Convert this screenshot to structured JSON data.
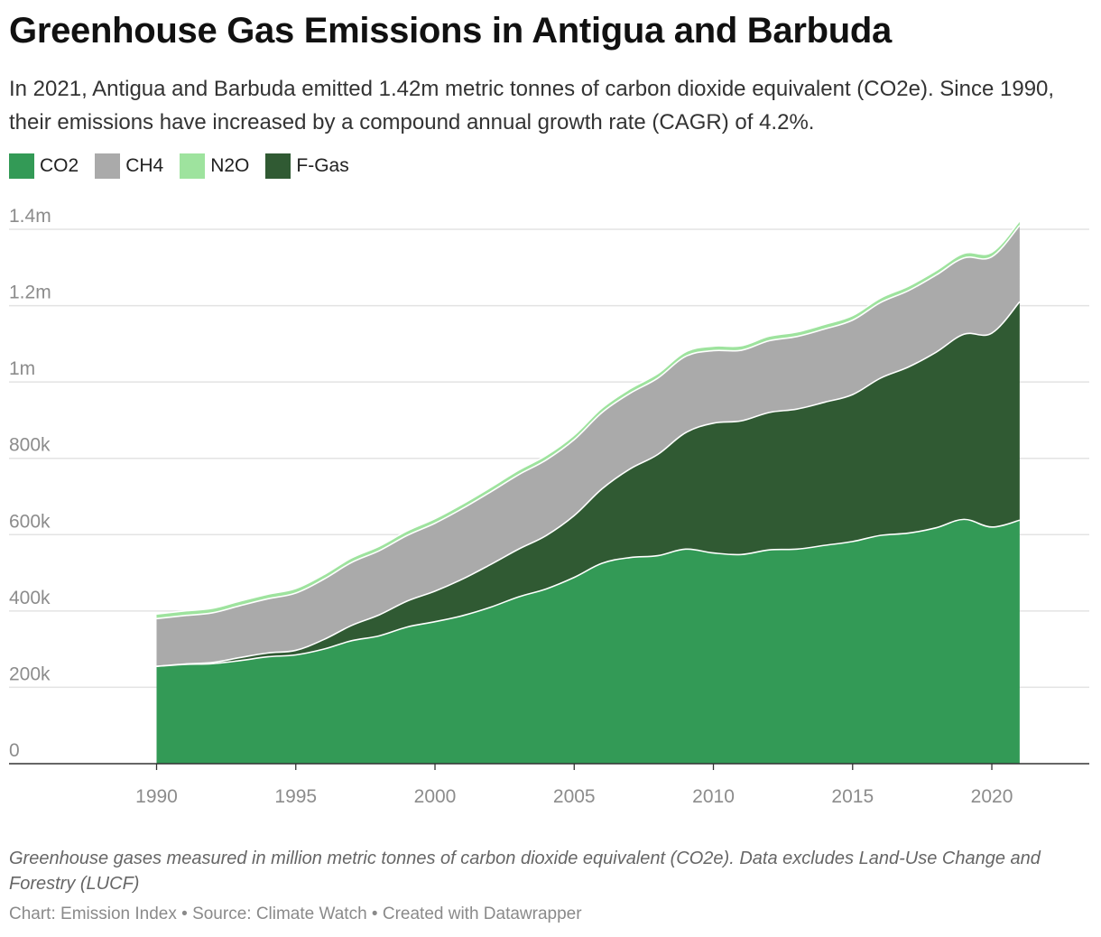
{
  "chart_data": {
    "type": "area",
    "stacked": true,
    "title": "Greenhouse Gas Emissions in Antigua and Barbuda",
    "subtitle": "In 2021, Antigua and Barbuda emitted 1.42m metric tonnes of carbon dioxide equivalent (CO2e). Since 1990, their emissions have increased by a compound annual growth rate (CAGR) of 4.2%.",
    "x": [
      1990,
      1991,
      1992,
      1993,
      1994,
      1995,
      1996,
      1997,
      1998,
      1999,
      2000,
      2001,
      2002,
      2003,
      2004,
      2005,
      2006,
      2007,
      2008,
      2009,
      2010,
      2011,
      2012,
      2013,
      2014,
      2015,
      2016,
      2017,
      2018,
      2019,
      2020,
      2021
    ],
    "series": [
      {
        "name": "CO2",
        "color": "#339a56",
        "values": [
          255000,
          260000,
          262000,
          270000,
          280000,
          285000,
          300000,
          322000,
          335000,
          358000,
          372000,
          388000,
          410000,
          437000,
          458000,
          488000,
          525000,
          540000,
          545000,
          562000,
          552000,
          548000,
          560000,
          562000,
          572000,
          582000,
          598000,
          604000,
          618000,
          640000,
          620000,
          638000
        ]
      },
      {
        "name": "F-Gas",
        "color": "#305a33",
        "values": [
          0,
          1000,
          3000,
          8000,
          10000,
          12000,
          25000,
          40000,
          55000,
          68000,
          80000,
          96000,
          112000,
          125000,
          140000,
          162000,
          195000,
          232000,
          265000,
          305000,
          340000,
          350000,
          360000,
          367000,
          375000,
          385000,
          412000,
          435000,
          460000,
          485000,
          508000,
          572000
        ]
      },
      {
        "name": "CH4",
        "color": "#aaaaaa",
        "values": [
          125000,
          127000,
          130000,
          136000,
          142000,
          150000,
          158000,
          165000,
          168000,
          172000,
          178000,
          185000,
          190000,
          195000,
          198000,
          199000,
          200000,
          198000,
          200000,
          200000,
          190000,
          185000,
          188000,
          190000,
          192000,
          195000,
          198000,
          200000,
          202000,
          200000,
          200000,
          200000
        ]
      },
      {
        "name": "N2O",
        "color": "#9ee39e",
        "values": [
          12000,
          12000,
          12000,
          12000,
          12000,
          12000,
          12000,
          12000,
          12000,
          12000,
          12000,
          12000,
          12000,
          12000,
          12000,
          12000,
          12000,
          12000,
          12000,
          12000,
          12000,
          12000,
          12000,
          12000,
          12000,
          12000,
          12000,
          12000,
          12000,
          12000,
          12000,
          12000
        ]
      }
    ],
    "legend_order": [
      "CO2",
      "CH4",
      "N2O",
      "F-Gas"
    ],
    "y_ticks": [
      0,
      200000,
      400000,
      600000,
      800000,
      1000000,
      1200000,
      1400000
    ],
    "y_tick_labels": [
      "0",
      "200k",
      "400k",
      "600k",
      "800k",
      "1m",
      "1.2m",
      "1.4m"
    ],
    "x_ticks": [
      1990,
      1995,
      2000,
      2005,
      2010,
      2015,
      2020
    ],
    "x_tick_labels": [
      "1990",
      "1995",
      "2000",
      "2005",
      "2010",
      "2015",
      "2020"
    ],
    "xlim": [
      1984.7,
      2023.5
    ],
    "ylim": [
      0,
      1400000
    ],
    "grid": true
  },
  "legend": [
    {
      "label": "CO2",
      "color": "#339a56"
    },
    {
      "label": "CH4",
      "color": "#aaaaaa"
    },
    {
      "label": "N2O",
      "color": "#9ee39e"
    },
    {
      "label": "F-Gas",
      "color": "#305a33"
    }
  ],
  "notes": "Greenhouse gases measured in million metric tonnes of carbon dioxide equivalent (CO2e). Data excludes Land-Use Change and Forestry (LUCF)",
  "footer": "Chart: Emission Index • Source: Climate Watch • Created with Datawrapper"
}
